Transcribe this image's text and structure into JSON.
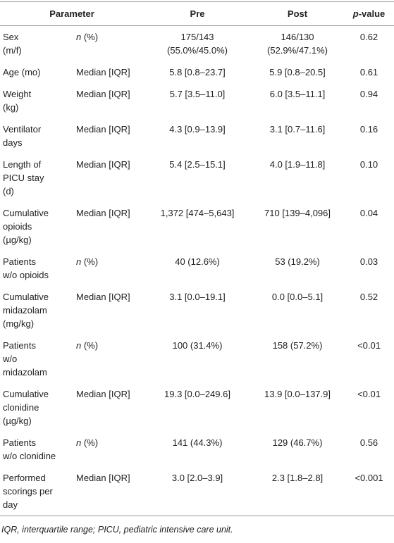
{
  "table": {
    "header": [
      "Parameter",
      "Pre",
      "Post",
      "p-value"
    ],
    "rows": [
      [
        "Sex\n(m/f)",
        "n (%)",
        "175/143\n(55.0%/45.0%)",
        "146/130\n(52.9%/47.1%)",
        "0.62"
      ],
      [
        "Age (mo)",
        "Median [IQR]",
        "5.8 [0.8–23.7]",
        "5.9 [0.8–20.5]",
        "0.61"
      ],
      [
        "Weight\n(kg)",
        "Median [IQR]",
        "5.7 [3.5–11.0]",
        "6.0 [3.5–11.1]",
        "0.94"
      ],
      [
        "Ventilator\ndays",
        "Median [IQR]",
        "4.3 [0.9–13.9]",
        "3.1 [0.7–11.6]",
        "0.16"
      ],
      [
        "Length of\nPICU stay\n(d)",
        "Median [IQR]",
        "5.4 [2.5–15.1]",
        "4.0 [1.9–11.8]",
        "0.10"
      ],
      [
        "Cumulative\nopioids\n(µg/kg)",
        "Median [IQR]",
        "1,372 [474–5,643]",
        "710 [139–4,096]",
        "0.04"
      ],
      [
        "Patients\nw/o opioids",
        "n (%)",
        "40 (12.6%)",
        "53 (19.2%)",
        "0.03"
      ],
      [
        "Cumulative\nmidazolam\n(mg/kg)",
        "Median [IQR]",
        "3.1 [0.0–19.1]",
        "0.0 [0.0–5.1]",
        "0.52"
      ],
      [
        "Patients\nw/o\nmidazolam",
        "n (%)",
        "100 (31.4%)",
        "158 (57.2%)",
        "<0.01"
      ],
      [
        "Cumulative\nclonidine\n(µg/kg)",
        "Median [IQR]",
        "19.3 [0.0–249.6]",
        "13.9 [0.0–137.9]",
        "<0.01"
      ],
      [
        "Patients\nw/o clonidine",
        "n (%)",
        "141 (44.3%)",
        "129 (46.7%)",
        "0.56"
      ],
      [
        "Performed\nscorings per\nday",
        "Median [IQR]",
        "3.0 [2.0–3.9]",
        "2.3 [1.8–2.8]",
        "<0.001"
      ]
    ],
    "footnote": "IQR, interquartile range; PICU, pediatric intensive care unit."
  }
}
